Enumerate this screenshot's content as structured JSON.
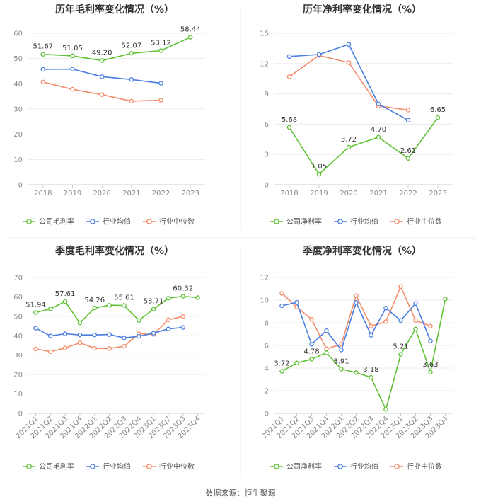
{
  "source": "数据来源：恒生聚源",
  "colors": {
    "company": "#5ec234",
    "avg": "#4a7ee0",
    "median": "#f48c6a"
  },
  "chart_data": [
    {
      "type": "line",
      "title": "历年毛利率变化情况（%）",
      "categories": [
        "2018",
        "2019",
        "2020",
        "2021",
        "2022",
        "2023"
      ],
      "ylim": [
        0,
        60
      ],
      "yticks": [
        0,
        10,
        20,
        30,
        40,
        50,
        60
      ],
      "rotate_x": false,
      "series": [
        {
          "name": "公司毛利率",
          "key": "company",
          "values": [
            51.67,
            51.05,
            49.2,
            52.07,
            53.12,
            58.44
          ],
          "labels": [
            "51.67",
            "51.05",
            "49.20",
            "52.07",
            "53.12",
            "58.44"
          ]
        },
        {
          "name": "行业均值",
          "key": "avg",
          "values": [
            45.7,
            45.8,
            42.8,
            41.7,
            40.2,
            null
          ]
        },
        {
          "name": "行业中位数",
          "key": "median",
          "values": [
            40.7,
            37.8,
            35.7,
            33.1,
            33.5,
            null
          ]
        }
      ]
    },
    {
      "type": "line",
      "title": "历年净利率变化情况（%）",
      "categories": [
        "2018",
        "2019",
        "2020",
        "2021",
        "2022",
        "2023"
      ],
      "ylim": [
        0,
        15
      ],
      "yticks": [
        0,
        3,
        6,
        9,
        12,
        15
      ],
      "rotate_x": false,
      "series": [
        {
          "name": "公司净利率",
          "key": "company",
          "values": [
            5.68,
            1.05,
            3.72,
            4.7,
            2.61,
            6.65
          ],
          "labels": [
            "5.68",
            "1.05",
            "3.72",
            "4.70",
            "2.61",
            "6.65"
          ]
        },
        {
          "name": "行业均值",
          "key": "avg",
          "values": [
            12.7,
            12.9,
            13.9,
            8.0,
            6.4,
            null
          ]
        },
        {
          "name": "行业中位数",
          "key": "median",
          "values": [
            10.7,
            12.8,
            12.1,
            7.8,
            7.4,
            null
          ]
        }
      ]
    },
    {
      "type": "line",
      "title": "季度毛利率变化情况（%）",
      "categories": [
        "2021Q1",
        "2021Q2",
        "2021Q3",
        "2021Q4",
        "2022Q1",
        "2022Q2",
        "2022Q3",
        "2022Q4",
        "2023Q1",
        "2023Q2",
        "2023Q3",
        "2023Q4"
      ],
      "ylim": [
        0,
        70
      ],
      "yticks": [
        0,
        10,
        20,
        30,
        40,
        50,
        60,
        70
      ],
      "rotate_x": true,
      "series": [
        {
          "name": "公司毛利率",
          "key": "company",
          "values": [
            51.94,
            53.8,
            57.61,
            46.6,
            54.26,
            55.7,
            55.61,
            47.9,
            53.71,
            59.3,
            60.32,
            59.6
          ],
          "labels": [
            "51.94",
            null,
            "57.61",
            null,
            "54.26",
            null,
            "55.61",
            null,
            "53.71",
            null,
            "60.32",
            null
          ]
        },
        {
          "name": "行业均值",
          "key": "avg",
          "values": [
            43.9,
            39.9,
            41.0,
            40.4,
            40.4,
            40.6,
            38.9,
            39.7,
            41.3,
            43.5,
            44.3,
            null
          ]
        },
        {
          "name": "行业中位数",
          "key": "median",
          "values": [
            33.2,
            31.8,
            33.7,
            36.4,
            33.5,
            33.4,
            34.6,
            41.0,
            40.7,
            48.2,
            49.9,
            null
          ]
        }
      ]
    },
    {
      "type": "line",
      "title": "季度净利率变化情况（%）",
      "categories": [
        "2021Q1",
        "2021Q2",
        "2021Q3",
        "2021Q4",
        "2022Q1",
        "2022Q2",
        "2022Q3",
        "2022Q4",
        "2023Q1",
        "2023Q2",
        "2023Q3",
        "2023Q4"
      ],
      "ylim": [
        0,
        12
      ],
      "yticks": [
        0,
        2,
        4,
        6,
        8,
        10,
        12
      ],
      "rotate_x": true,
      "series": [
        {
          "name": "公司净利率",
          "key": "company",
          "values": [
            3.72,
            4.45,
            4.78,
            5.35,
            3.91,
            3.6,
            3.18,
            0.35,
            5.21,
            7.45,
            3.63,
            10.1
          ],
          "labels": [
            "3.72",
            null,
            "4.78",
            null,
            "3.91",
            null,
            "3.18",
            null,
            "5.21",
            null,
            "3.63",
            null
          ]
        },
        {
          "name": "行业均值",
          "key": "avg",
          "values": [
            9.5,
            9.8,
            6.1,
            7.3,
            5.6,
            9.8,
            6.9,
            9.3,
            8.2,
            9.7,
            6.4,
            null
          ]
        },
        {
          "name": "行业中位数",
          "key": "median",
          "values": [
            10.6,
            9.4,
            8.3,
            5.7,
            6.1,
            10.4,
            7.7,
            8.1,
            11.2,
            8.2,
            7.7,
            null
          ]
        }
      ]
    }
  ]
}
